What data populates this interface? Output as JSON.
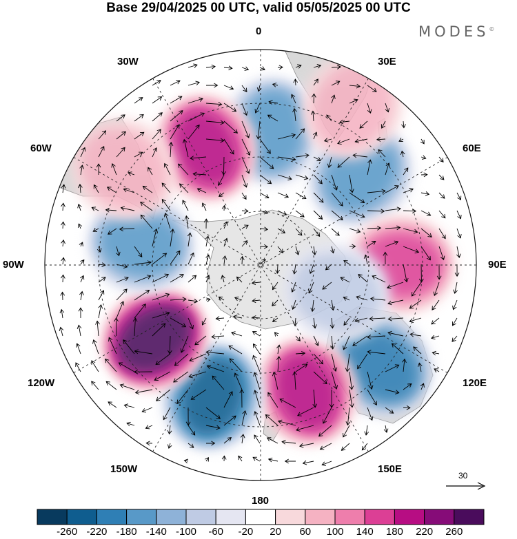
{
  "title": "Base 29/04/2025 00 UTC, valid 05/05/2025 00 UTC",
  "brand": "MODES",
  "brand_mark": "©",
  "map": {
    "projection": "south polar stereographic",
    "meridian_labels": {
      "m0": "0",
      "m30e": "30E",
      "m60e": "60E",
      "m90e": "90E",
      "m120e": "120E",
      "m150e": "150E",
      "m180": "180",
      "m150w": "150W",
      "m120w": "120W",
      "m90w": "90W",
      "m60w": "60W",
      "m30w": "30W"
    },
    "reference_vector": "30",
    "colors": {
      "land": "#d9d9d9",
      "antarctica": "#e6e6e6",
      "grid": "#222222"
    }
  },
  "colorbar": {
    "ticks": [
      "-260",
      "-220",
      "-180",
      "-140",
      "-100",
      "-60",
      "-20",
      "20",
      "60",
      "100",
      "140",
      "180",
      "220",
      "260"
    ],
    "colors": [
      "#083a5e",
      "#0f5d8f",
      "#2f7fb5",
      "#5899c8",
      "#8eb2d8",
      "#bfcbe4",
      "#e5e6f2",
      "#ffffff",
      "#f8d9dc",
      "#f5b2c2",
      "#ee7eac",
      "#dc3f95",
      "#b70d83",
      "#860c78",
      "#4a0c5c"
    ]
  },
  "anomalies": [
    {
      "lon": 5,
      "lat": -40,
      "value": -160
    },
    {
      "lon": -25,
      "lat": -42,
      "value": 200
    },
    {
      "lon": 48,
      "lat": -40,
      "value": -170
    },
    {
      "lon": 30,
      "lat": -22,
      "value": 60
    },
    {
      "lon": 90,
      "lat": -38,
      "value": 140
    },
    {
      "lon": 130,
      "lat": -32,
      "value": -190
    },
    {
      "lon": 160,
      "lat": -40,
      "value": 200
    },
    {
      "lon": -160,
      "lat": -38,
      "value": -240
    },
    {
      "lon": -125,
      "lat": -42,
      "value": 260
    },
    {
      "lon": -80,
      "lat": -45,
      "value": -150
    },
    {
      "lon": -55,
      "lat": -28,
      "value": 60
    },
    {
      "lon": 110,
      "lat": -60,
      "value": -60
    }
  ]
}
